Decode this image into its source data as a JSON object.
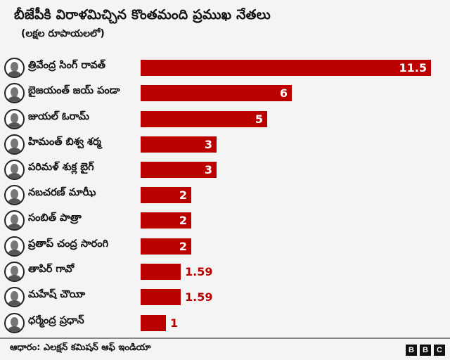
{
  "header": {
    "title": "బీజేపీకి విరాళమిచ్చిన కొంతమంది ప్రముఖ నేతలు",
    "subtitle": "(లక్షల రూపాయలలో)"
  },
  "footer": {
    "source": "ఆధారం: ఎలక్షన్ కమిషన్ ఆఫ్ ఇండియా",
    "logo": [
      "B",
      "B",
      "C"
    ]
  },
  "colors": {
    "bar": "#bb0000",
    "background": "#f4f4f4"
  },
  "rows": [
    {
      "name": "త్రివేంద్ర సింగ్ రావత్",
      "value": "11.5"
    },
    {
      "name": "బైజయంత్ జయ్ పండా",
      "value": "6"
    },
    {
      "name": "జుయల్ ఓరామ్",
      "value": "5"
    },
    {
      "name": "హిమంత్ బిశ్వ శర్మ",
      "value": "3"
    },
    {
      "name": "పరిమళ్ శుక్ల బైగ్",
      "value": "3"
    },
    {
      "name": "నబచరణ్ మాఝీ",
      "value": "2"
    },
    {
      "name": "సంబిత్ పాత్రా",
      "value": "2"
    },
    {
      "name": "ప్రతాప్ చంద్ర సారంగి",
      "value": "2"
    },
    {
      "name": "తాపిర్ గావో",
      "value": "1.59"
    },
    {
      "name": "మహేష్ చౌయిా",
      "value": "1.59"
    },
    {
      "name": "ధర్మేంద్ర ప్రధాన్",
      "value": "1"
    }
  ],
  "chart_data": {
    "type": "bar",
    "orientation": "horizontal",
    "title": "బీజేపీకి విరాళమిచ్చిన కొంతమంది ప్రముఖ నేతలు",
    "subtitle": "(లక్షల రూపాయలలో)",
    "xlabel": "",
    "ylabel": "",
    "categories": [
      "త్రివేంద్ర సింగ్ రావత్",
      "బైజయంత్ జయ్ పండా",
      "జుయల్ ఓరామ్",
      "హిమంత్ బిశ్వ శర్మ",
      "పరిమళ్ శుక్ల బైగ్",
      "నబచరణ్ మాఝీ",
      "సంబిత్ పాత్రా",
      "ప్రతాప్ చంద్ర సారంగి",
      "తాపిర్ గావో",
      "మహేష్ చౌయిా",
      "ధర్మేంద్ర ప్రధాన్"
    ],
    "values": [
      11.5,
      6,
      5,
      3,
      3,
      2,
      2,
      2,
      1.59,
      1.59,
      1
    ],
    "grid": false,
    "legend": null,
    "source": "ఆధారం: ఎలక్షన్ కమిషన్ ఆఫ్ ఇండియా"
  }
}
